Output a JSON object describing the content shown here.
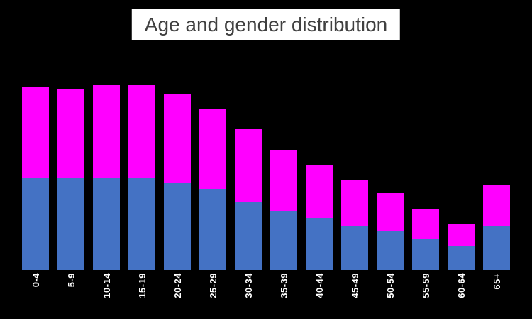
{
  "page": {
    "background_color": "#000000"
  },
  "chart_data": {
    "type": "bar",
    "stacked": true,
    "title": "Age and gender distribution",
    "title_style": {
      "background": "#ffffff",
      "text_color": "#404040"
    },
    "categories": [
      "0-4",
      "5-9",
      "10-14",
      "15-19",
      "20-24",
      "25-29",
      "30-34",
      "35-39",
      "40-44",
      "45-49",
      "50-54",
      "55-59",
      "60-64",
      "65+"
    ],
    "series": [
      {
        "name": "bottom-blue",
        "color": "#4472C4",
        "values": [
          50,
          50,
          50,
          50,
          47,
          44,
          37,
          32,
          28,
          24,
          21,
          17,
          13,
          24
        ]
      },
      {
        "name": "top-magenta",
        "color": "#FF00FF",
        "values": [
          49,
          48,
          50,
          50,
          48,
          43,
          39,
          33,
          29,
          25,
          21,
          16,
          12,
          22
        ]
      }
    ],
    "xlabel": "",
    "ylabel": "",
    "ylim": [
      0,
      100
    ],
    "grid": false,
    "legend": "none",
    "x_tick_label_rotation": 90,
    "x_tick_label_color": "#ffffff"
  }
}
